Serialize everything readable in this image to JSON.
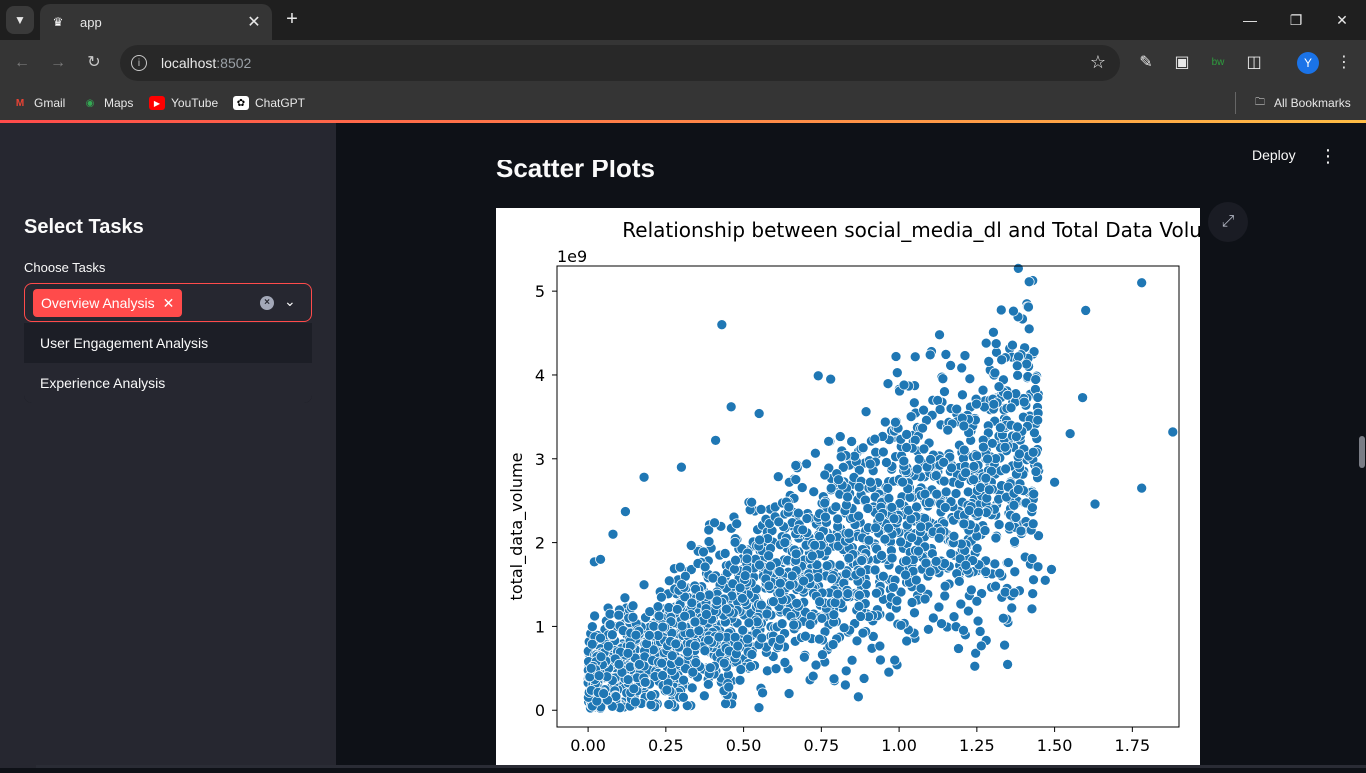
{
  "browser": {
    "tab_title": "app",
    "url_host": "localhost",
    "url_port": ":8502",
    "profile_initial": "Y",
    "bookmarks": [
      "Gmail",
      "Maps",
      "YouTube",
      "ChatGPT"
    ],
    "all_bookmarks": "All Bookmarks"
  },
  "sidebar": {
    "title": "Select Tasks",
    "field_label": "Choose Tasks",
    "selected_chip": "Overview Analysis",
    "options": [
      "User Engagement Analysis",
      "Experience Analysis"
    ]
  },
  "header": {
    "deploy": "Deploy"
  },
  "main": {
    "section_heading": "Scatter Plots"
  },
  "chart_data": {
    "type": "scatter",
    "title": "Relationship between social_media_dl and Total Data Volume",
    "xlabel": "",
    "ylabel": "total_data_volume",
    "y_offset_label": "1e9",
    "xlim": [
      -0.1,
      1.9
    ],
    "ylim": [
      -0.2,
      5.3
    ],
    "xticks": [
      "0.00",
      "0.25",
      "0.50",
      "0.75",
      "1.00",
      "1.25",
      "1.50",
      "1.75"
    ],
    "yticks": [
      "0",
      "1",
      "2",
      "3",
      "4",
      "5"
    ],
    "marker_color": "#1f77b4",
    "grid": false,
    "sample_points": [
      [
        0.43,
        4.6
      ],
      [
        1.78,
        5.1
      ],
      [
        1.6,
        4.77
      ],
      [
        1.88,
        3.32
      ],
      [
        1.78,
        2.65
      ],
      [
        1.63,
        2.46
      ],
      [
        1.59,
        3.73
      ],
      [
        1.28,
        4.38
      ],
      [
        1.41,
        4.13
      ],
      [
        1.38,
        4.11
      ],
      [
        0.99,
        4.22
      ],
      [
        1.1,
        4.24
      ],
      [
        1.13,
        4.48
      ],
      [
        0.74,
        3.99
      ],
      [
        0.78,
        3.95
      ],
      [
        1.55,
        3.3
      ],
      [
        1.5,
        2.72
      ],
      [
        1.47,
        1.55
      ],
      [
        1.49,
        1.68
      ],
      [
        1.37,
        1.4
      ],
      [
        1.25,
        1.3
      ],
      [
        1.29,
        2.63
      ],
      [
        0.94,
        0.6
      ],
      [
        0.83,
        0.47
      ],
      [
        0.46,
        3.62
      ],
      [
        0.41,
        3.22
      ],
      [
        0.55,
        3.54
      ],
      [
        0.3,
        2.9
      ],
      [
        0.18,
        2.78
      ],
      [
        0.12,
        2.37
      ],
      [
        0.08,
        2.1
      ],
      [
        0.02,
        1.77
      ],
      [
        0.04,
        1.8
      ],
      [
        0.05,
        0.2
      ],
      [
        0.01,
        0.5
      ]
    ]
  }
}
